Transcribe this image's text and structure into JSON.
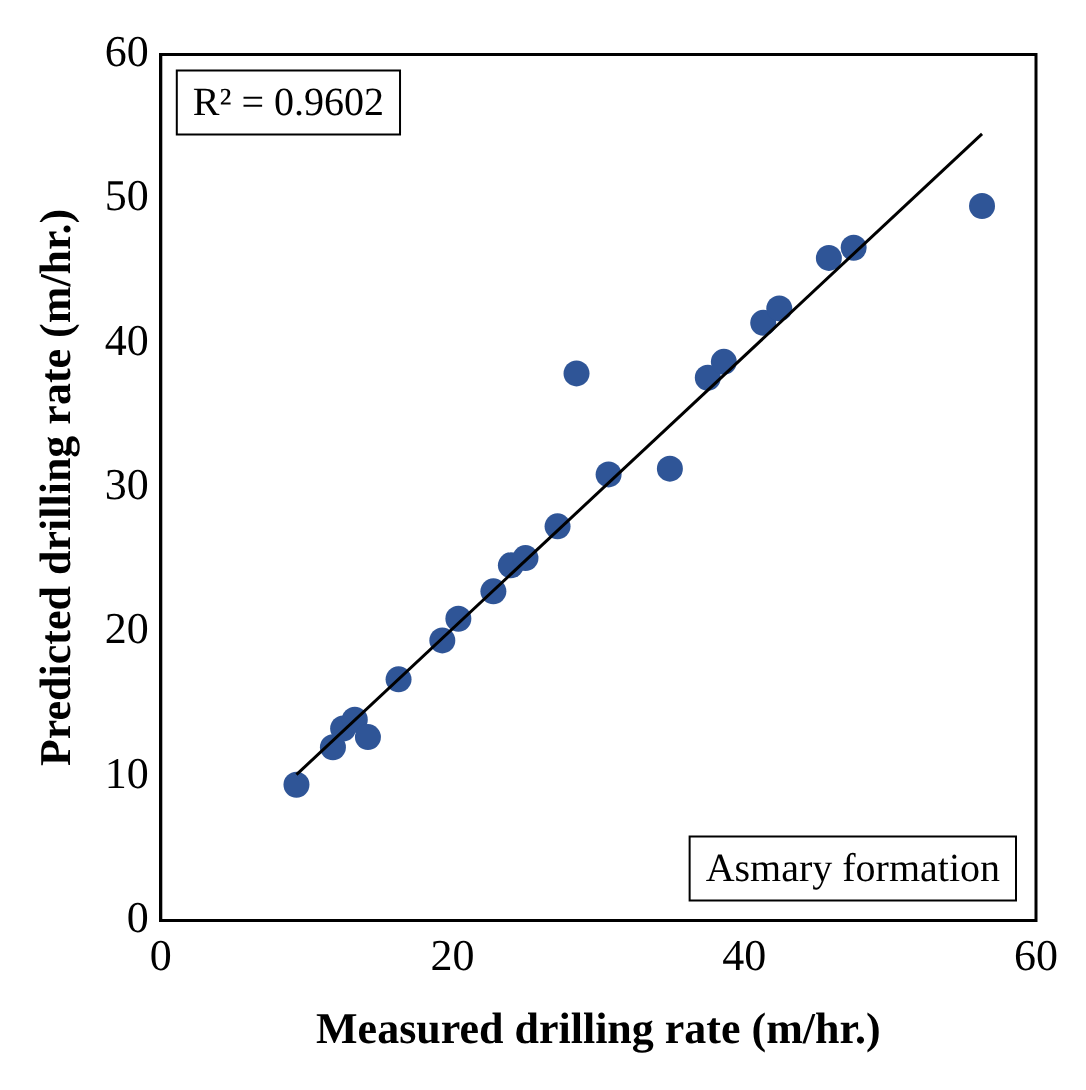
{
  "chart_data": {
    "type": "scatter",
    "xlabel": "Measured drilling rate (m/hr.)",
    "ylabel": "Predicted drilling rate (m/hr.)",
    "xlim": [
      0,
      60
    ],
    "xticks": [
      0,
      20,
      40,
      60
    ],
    "ylim": [
      0,
      60
    ],
    "yticks": [
      0,
      10,
      20,
      30,
      40,
      50,
      60
    ],
    "grid": false,
    "legend": false,
    "marker": "circle",
    "annotations": [
      "R² = 0.9602",
      "Asmary formation"
    ],
    "series": [
      {
        "color": "#2f5597",
        "x": [
          9.3,
          11.8,
          12.5,
          13.3,
          14.2,
          16.3,
          19.3,
          20.4,
          22.8,
          24.0,
          25.0,
          27.2,
          28.5,
          30.7,
          34.9,
          37.5,
          38.6,
          41.3,
          42.4,
          45.8,
          47.5,
          56.3
        ],
        "values": [
          9.4,
          12.0,
          13.3,
          13.9,
          12.7,
          16.7,
          19.4,
          20.9,
          22.8,
          24.6,
          25.1,
          27.3,
          37.9,
          30.9,
          31.3,
          37.6,
          38.7,
          41.4,
          42.4,
          45.9,
          46.6,
          49.5
        ]
      },
      {
        "type": "line",
        "color": "#000000",
        "marker": "none",
        "x": [
          9.3,
          56.3
        ],
        "values": [
          10.1,
          54.5
        ]
      }
    ]
  }
}
